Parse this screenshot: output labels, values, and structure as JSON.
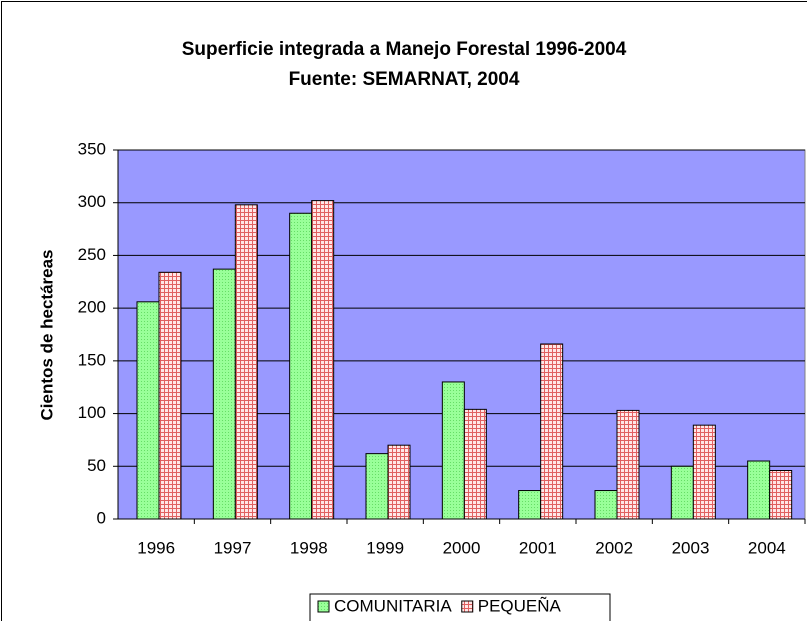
{
  "chart_data": {
    "type": "bar",
    "title": "Superficie integrada a Manejo Forestal 1996-2004",
    "subtitle": "Fuente: SEMARNAT, 2004",
    "y_label": "Cientos de hectáreas",
    "categories": [
      "1996",
      "1997",
      "1998",
      "1999",
      "2000",
      "2001",
      "2002",
      "2003",
      "2004"
    ],
    "series": [
      {
        "name": "COMUNITARIA",
        "color": "#99ff99",
        "values": [
          206,
          237,
          290,
          62,
          130,
          27,
          27,
          50,
          55
        ]
      },
      {
        "name": "PEQUEÑA",
        "color": "#ffcccc",
        "values": [
          234,
          298,
          302,
          70,
          104,
          166,
          103,
          89,
          46
        ]
      }
    ],
    "ylim": [
      0,
      350
    ],
    "yticks": [
      0,
      50,
      100,
      150,
      200,
      250,
      300,
      350
    ],
    "grid": true,
    "plot_background": "#9999ff",
    "legend": "bottom"
  }
}
